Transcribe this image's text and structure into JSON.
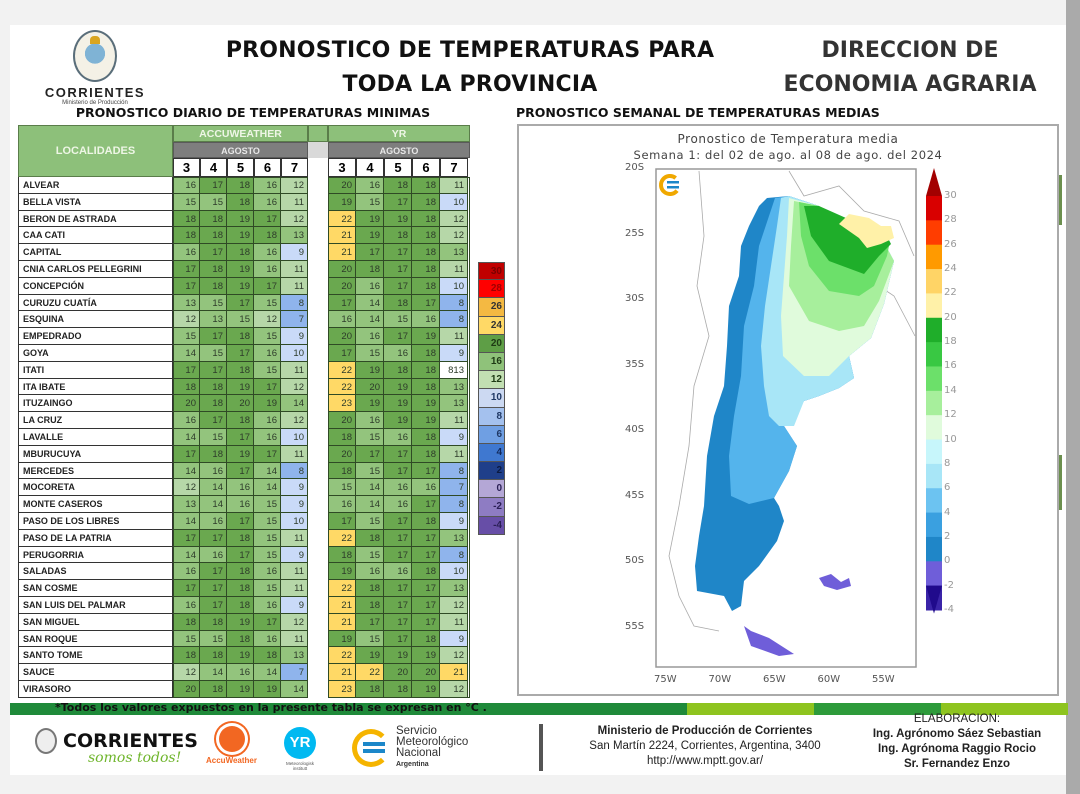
{
  "header": {
    "logo_name": "CORRIENTES",
    "logo_sub": "Ministerio de Producción",
    "title_line1": "PRONOSTICO DE TEMPERATURAS PARA",
    "title_line2": "TODA  LA PROVINCIA",
    "dept_line1": "DIRECCION DE",
    "dept_line2": "ECONOMIA AGRARIA"
  },
  "sections": {
    "left_title": "PRONOSTICO DIARIO DE TEMPERATURAS MINIMAS",
    "right_title": "PRONOSTICO SEMANAL DE TEMPERATURAS MEDIAS"
  },
  "table": {
    "col_localidades": "LOCALIDADES",
    "source_a": "ACCUWEATHER",
    "source_b": "YR",
    "month_a": "AGOSTO",
    "month_b": "AGOSTO",
    "days_a": [
      "3",
      "4",
      "5",
      "6",
      "7"
    ],
    "days_b": [
      "3",
      "4",
      "5",
      "6",
      "7"
    ],
    "rows": [
      {
        "loc": "ALVEAR",
        "a": [
          "16",
          "17",
          "18",
          "16",
          "12"
        ],
        "b": [
          "20",
          "16",
          "18",
          "18",
          "11"
        ]
      },
      {
        "loc": "BELLA VISTA",
        "a": [
          "15",
          "15",
          "18",
          "16",
          "11"
        ],
        "b": [
          "19",
          "15",
          "17",
          "18",
          "10"
        ]
      },
      {
        "loc": "BERON DE ASTRADA",
        "a": [
          "18",
          "18",
          "19",
          "17",
          "12"
        ],
        "b": [
          "22",
          "19",
          "19",
          "18",
          "12"
        ]
      },
      {
        "loc": "CAA CATI",
        "a": [
          "18",
          "18",
          "19",
          "18",
          "13"
        ],
        "b": [
          "21",
          "19",
          "18",
          "18",
          "12"
        ]
      },
      {
        "loc": "CAPITAL",
        "a": [
          "16",
          "17",
          "18",
          "16",
          "9"
        ],
        "b": [
          "21",
          "17",
          "17",
          "18",
          "13"
        ]
      },
      {
        "loc": "CNIA CARLOS PELLEGRINI",
        "a": [
          "17",
          "18",
          "19",
          "16",
          "11"
        ],
        "b": [
          "20",
          "18",
          "17",
          "18",
          "11"
        ]
      },
      {
        "loc": "CONCEPCIÓN",
        "a": [
          "17",
          "18",
          "19",
          "17",
          "11"
        ],
        "b": [
          "20",
          "16",
          "17",
          "18",
          "10"
        ]
      },
      {
        "loc": "CURUZU CUATÍA",
        "a": [
          "13",
          "15",
          "17",
          "15",
          "8"
        ],
        "b": [
          "17",
          "14",
          "18",
          "17",
          "8"
        ]
      },
      {
        "loc": "ESQUINA",
        "a": [
          "12",
          "13",
          "15",
          "12",
          "7"
        ],
        "b": [
          "16",
          "14",
          "15",
          "16",
          "8"
        ]
      },
      {
        "loc": "EMPEDRADO",
        "a": [
          "15",
          "17",
          "18",
          "15",
          "9"
        ],
        "b": [
          "20",
          "16",
          "17",
          "19",
          "11"
        ]
      },
      {
        "loc": "GOYA",
        "a": [
          "14",
          "15",
          "17",
          "16",
          "10"
        ],
        "b": [
          "17",
          "15",
          "16",
          "18",
          "9"
        ]
      },
      {
        "loc": "ITATI",
        "a": [
          "17",
          "17",
          "18",
          "15",
          "11"
        ],
        "b": [
          "22",
          "19",
          "18",
          "18",
          "813"
        ]
      },
      {
        "loc": "ITA IBATE",
        "a": [
          "18",
          "18",
          "19",
          "17",
          "12"
        ],
        "b": [
          "22",
          "20",
          "19",
          "18",
          "13"
        ]
      },
      {
        "loc": "ITUZAINGO",
        "a": [
          "20",
          "18",
          "20",
          "19",
          "14"
        ],
        "b": [
          "23",
          "19",
          "19",
          "19",
          "13"
        ]
      },
      {
        "loc": "LA CRUZ",
        "a": [
          "16",
          "17",
          "18",
          "16",
          "12"
        ],
        "b": [
          "20",
          "16",
          "19",
          "19",
          "11"
        ]
      },
      {
        "loc": "LAVALLE",
        "a": [
          "14",
          "15",
          "17",
          "16",
          "10"
        ],
        "b": [
          "18",
          "15",
          "16",
          "18",
          "9"
        ]
      },
      {
        "loc": "MBURUCUYA",
        "a": [
          "17",
          "18",
          "19",
          "17",
          "11"
        ],
        "b": [
          "20",
          "17",
          "17",
          "18",
          "11"
        ]
      },
      {
        "loc": "MERCEDES",
        "a": [
          "14",
          "16",
          "17",
          "14",
          "8"
        ],
        "b": [
          "18",
          "15",
          "17",
          "17",
          "8"
        ]
      },
      {
        "loc": "MOCORETA",
        "a": [
          "12",
          "14",
          "16",
          "14",
          "9"
        ],
        "b": [
          "15",
          "14",
          "16",
          "16",
          "7"
        ]
      },
      {
        "loc": "MONTE CASEROS",
        "a": [
          "13",
          "14",
          "16",
          "15",
          "9"
        ],
        "b": [
          "16",
          "14",
          "16",
          "17",
          "8"
        ]
      },
      {
        "loc": "PASO DE LOS LIBRES",
        "a": [
          "14",
          "16",
          "17",
          "15",
          "10"
        ],
        "b": [
          "17",
          "15",
          "17",
          "18",
          "9"
        ]
      },
      {
        "loc": "PASO DE LA PATRIA",
        "a": [
          "17",
          "17",
          "18",
          "15",
          "11"
        ],
        "b": [
          "22",
          "18",
          "17",
          "17",
          "13"
        ]
      },
      {
        "loc": "PERUGORRIA",
        "a": [
          "14",
          "16",
          "17",
          "15",
          "9"
        ],
        "b": [
          "18",
          "15",
          "17",
          "17",
          "8"
        ]
      },
      {
        "loc": "SALADAS",
        "a": [
          "16",
          "17",
          "18",
          "16",
          "11"
        ],
        "b": [
          "19",
          "16",
          "16",
          "18",
          "10"
        ]
      },
      {
        "loc": "SAN COSME",
        "a": [
          "17",
          "17",
          "18",
          "15",
          "11"
        ],
        "b": [
          "22",
          "18",
          "17",
          "17",
          "13"
        ]
      },
      {
        "loc": "SAN LUIS DEL PALMAR",
        "a": [
          "16",
          "17",
          "18",
          "16",
          "9"
        ],
        "b": [
          "21",
          "18",
          "17",
          "17",
          "12"
        ]
      },
      {
        "loc": "SAN MIGUEL",
        "a": [
          "18",
          "18",
          "19",
          "17",
          "12"
        ],
        "b": [
          "21",
          "17",
          "17",
          "17",
          "11"
        ]
      },
      {
        "loc": "SAN ROQUE",
        "a": [
          "15",
          "15",
          "18",
          "16",
          "11"
        ],
        "b": [
          "19",
          "15",
          "17",
          "18",
          "9"
        ]
      },
      {
        "loc": "SANTO TOME",
        "a": [
          "18",
          "18",
          "19",
          "18",
          "13"
        ],
        "b": [
          "22",
          "19",
          "19",
          "19",
          "12"
        ]
      },
      {
        "loc": "SAUCE",
        "a": [
          "12",
          "14",
          "16",
          "14",
          "7"
        ],
        "b": [
          "21",
          "22",
          "20",
          "20",
          "21"
        ]
      },
      {
        "loc": "VIRASORO",
        "a": [
          "20",
          "18",
          "19",
          "19",
          "14"
        ],
        "b": [
          "23",
          "18",
          "18",
          "19",
          "12"
        ]
      }
    ]
  },
  "legend": {
    "items": [
      {
        "label": "30",
        "color": "#c00000",
        "text": "#7a0000"
      },
      {
        "label": "28",
        "color": "#ff0000",
        "text": "#a00000"
      },
      {
        "label": "26",
        "color": "#f4b942",
        "text": "#333"
      },
      {
        "label": "24",
        "color": "#ffd966",
        "text": "#333"
      },
      {
        "label": "20",
        "color": "#5e9e46",
        "text": "#1e3a14"
      },
      {
        "label": "16",
        "color": "#8fc27a",
        "text": "#1e3a14"
      },
      {
        "label": "12",
        "color": "#c2dfb2",
        "text": "#1e3a14"
      },
      {
        "label": "10",
        "color": "#ccd9f2",
        "text": "#1f3864"
      },
      {
        "label": "8",
        "color": "#a4c1ee",
        "text": "#1f3864"
      },
      {
        "label": "6",
        "color": "#6f9fe3",
        "text": "#1f3864"
      },
      {
        "label": "4",
        "color": "#3f78d0",
        "text": "#12285a"
      },
      {
        "label": "2",
        "color": "#1f3f8a",
        "text": "#0b1a40"
      },
      {
        "label": "0",
        "color": "#b4a7d6",
        "text": "#2a1f55"
      },
      {
        "label": "-2",
        "color": "#8e7cc3",
        "text": "#2a1f55"
      },
      {
        "label": "-4",
        "color": "#674ea7",
        "text": "#2a1f55"
      }
    ]
  },
  "map": {
    "title": "Pronostico de Temperatura media",
    "subtitle": "Semana 1: del 02 de ago. al 08 de ago. del 2024",
    "lat_labels": [
      "20S",
      "25S",
      "30S",
      "35S",
      "40S",
      "45S",
      "50S",
      "55S"
    ],
    "lon_labels": [
      "75W",
      "70W",
      "65W",
      "60W",
      "55W"
    ],
    "colorbar_labels": [
      "30",
      "28",
      "26",
      "24",
      "22",
      "20",
      "18",
      "16",
      "14",
      "12",
      "10",
      "8",
      "6",
      "4",
      "2",
      "0",
      "-2",
      "-4"
    ],
    "colorbar_colors": [
      "#a30000",
      "#d90000",
      "#ff3d00",
      "#ff9a00",
      "#ffd466",
      "#fff1a8",
      "#1fae2a",
      "#39c843",
      "#6ce06a",
      "#a7ef9c",
      "#e0fbdc",
      "#c7f6fb",
      "#a8e6f7",
      "#6cc3f1",
      "#3aa0e0",
      "#1f86c8",
      "#6f5ed9",
      "#3a24a8",
      "#200a8c"
    ]
  },
  "footer": {
    "note": "*Todos los valores expuestos en la presente tabla se expresan en °C .",
    "corrientes_logo": "CORRIENTES",
    "corrientes_slogan": "somos todos!",
    "accuweather": "AccuWeather",
    "yr": "YR",
    "yr_sub": "Meteorologisk institutt",
    "smn_line1": "Servicio",
    "smn_line2": "Meteorológico",
    "smn_line3": "Nacional",
    "smn_line4": "Argentina",
    "ministry_name": "Ministerio de Producción de Corrientes",
    "ministry_address": "San Martín 2224, Corrientes, Argentina, 3400",
    "ministry_url": "http://www.mptt.gov.ar/",
    "elab_title": "ELABORACION:",
    "elab_1": "Ing. Agrónomo  Sáez Sebastian",
    "elab_2": "Ing. Agrónoma Raggio Rocio",
    "elab_3": "Sr. Fernandez Enzo"
  }
}
